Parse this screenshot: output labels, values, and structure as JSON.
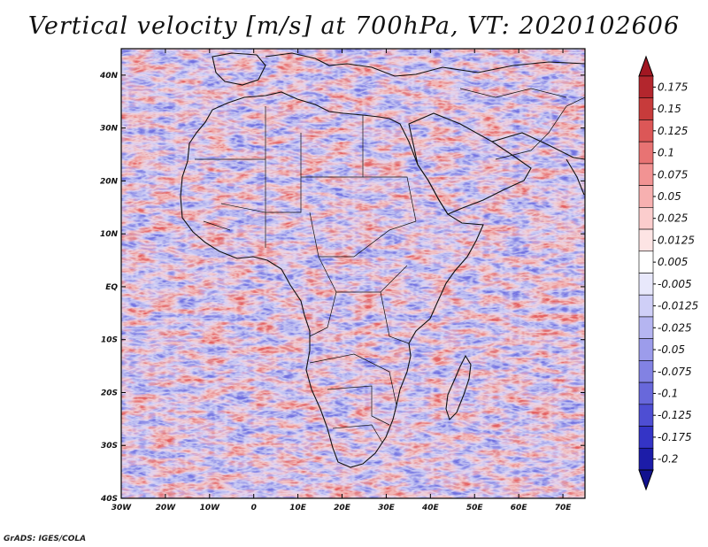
{
  "title": "Vertical velocity [m/s] at 700hPa, VT: 2020102606",
  "footer": "GrADS: IGES/COLA",
  "map": {
    "lon_labels": [
      "30W",
      "20W",
      "10W",
      "0",
      "10E",
      "20E",
      "30E",
      "40E",
      "50E",
      "60E",
      "70E"
    ],
    "lat_labels": [
      "40N",
      "30N",
      "20N",
      "10N",
      "EQ",
      "10S",
      "20S",
      "30S",
      "40S"
    ]
  },
  "colorbar": {
    "labels": [
      "0.175",
      "0.15",
      "0.125",
      "0.1",
      "0.075",
      "0.05",
      "0.025",
      "0.0125",
      "0.005",
      "-0.005",
      "-0.0125",
      "-0.025",
      "-0.05",
      "-0.075",
      "-0.1",
      "-0.125",
      "-0.175",
      "-0.2"
    ],
    "colors": [
      "#b3262d",
      "#c73b3b",
      "#dc5757",
      "#e87373",
      "#f29393",
      "#f7b0b0",
      "#fbcdcd",
      "#fde4e4",
      "#ffffff",
      "#e8e8fb",
      "#cfcff7",
      "#b5b5f1",
      "#9c9ceb",
      "#8282e3",
      "#6868db",
      "#4e4ed3",
      "#3434c6",
      "#1c1ca8"
    ],
    "top_color": "#a11722",
    "bottom_color": "#12128e"
  }
}
